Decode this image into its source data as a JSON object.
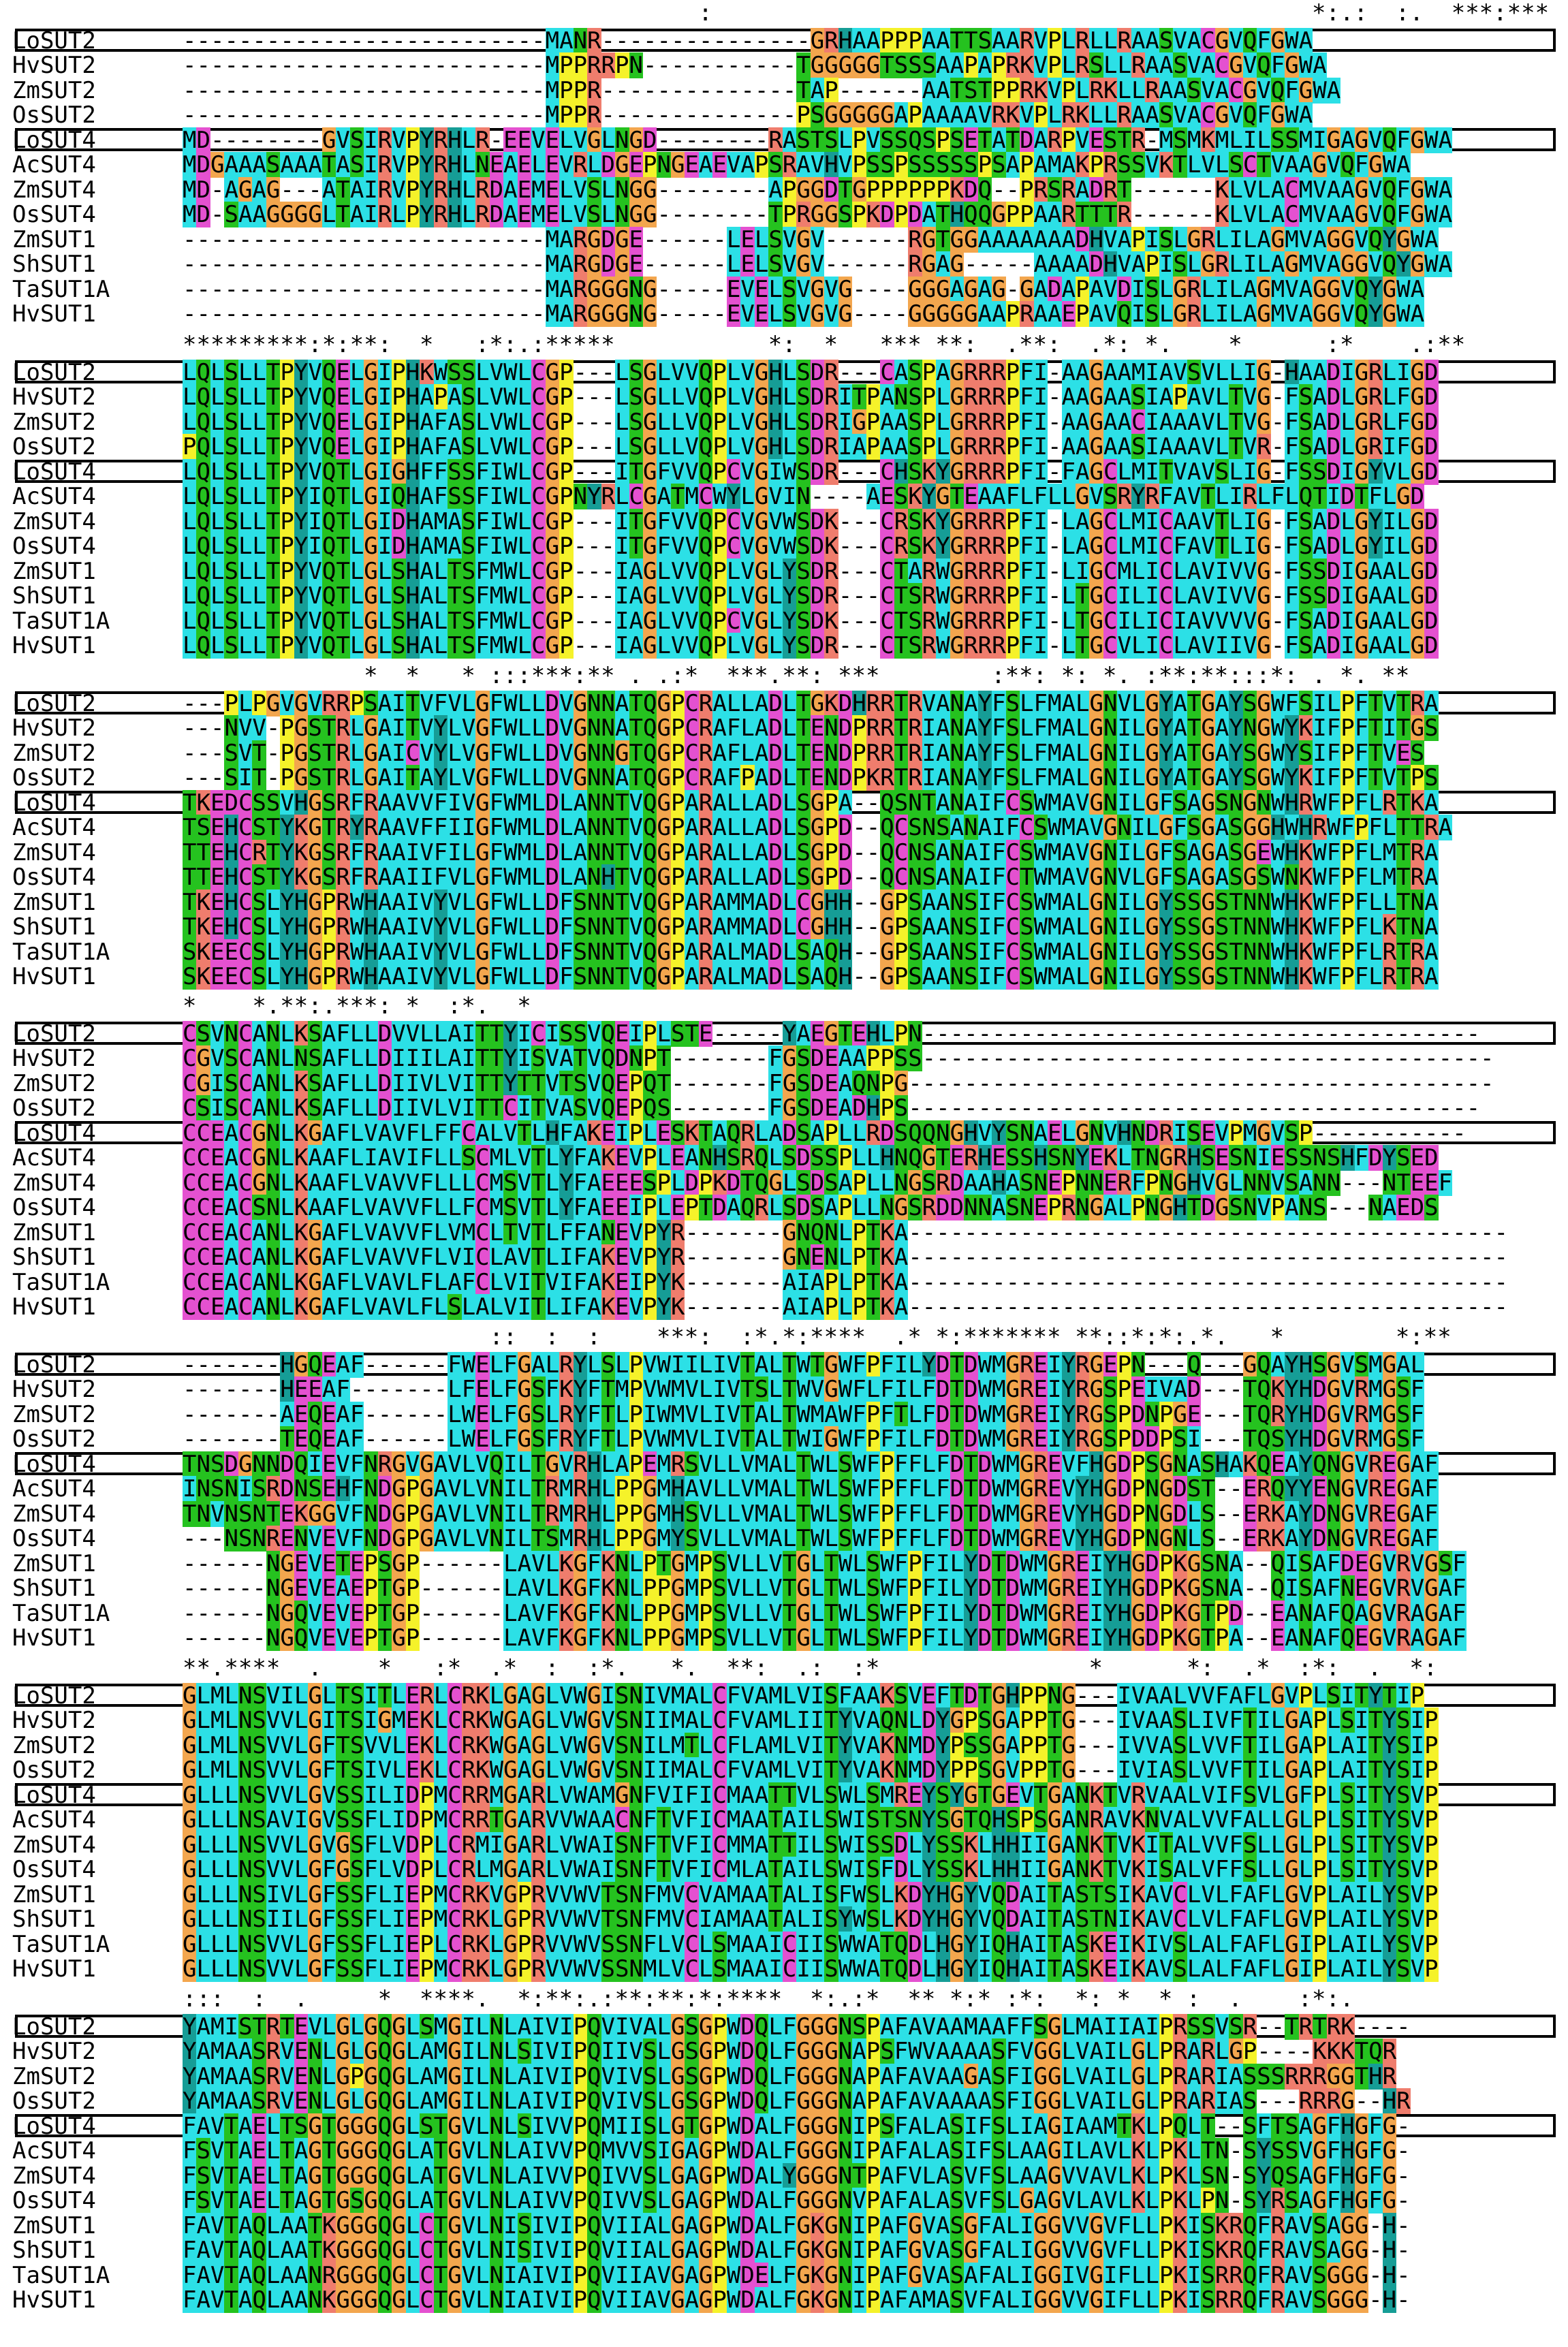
{
  "colors": {
    "cyan": "#2ce0e6",
    "orange": "#f3a64e",
    "yellow": "#f5f22a",
    "magenta": "#e451d0",
    "green": "#25c21f",
    "teal": "#169d96",
    "salmon": "#ef7d6d",
    "grey": "#b8b8b8"
  },
  "boxed_sequences": [
    "LoSUT2",
    "LoSUT4"
  ],
  "blocks": [
    {
      "conservation": "                                     :                                           *:.:  :.  ***:***",
      "rows": [
        {
          "name": "LoSUT2",
          "seq": "--------------------------MANR---------------GRHAAPPPAATTSAARVPLRLLRAASVACGVQFGWA"
        },
        {
          "name": "HvSUT2",
          "seq": "--------------------------MPPRRPN-----------TGGGGGTSSSAAPAPRKVPLRSLLRAASVACGVQFGWA"
        },
        {
          "name": "ZmSUT2",
          "seq": "--------------------------MPPR--------------TAP------AATSTPPRKVPLRKLLRAASVACGVQFGWA"
        },
        {
          "name": "OsSUT2",
          "seq": "--------------------------MPPR--------------PSGGGGGAPAAAAVRKVPLRKLLRAASVACGVQFGWA"
        },
        {
          "name": "LoSUT4",
          "seq": "MD--------GVSIRVPYRHLR-EEVELVGLNGD--------RASTSLPVSSQSPSETATDARPVESTR-MSMKMLILSSMIGAGVQFGWA"
        },
        {
          "name": "AcSUT4",
          "seq": "MDGAAASAAATASIRVPYRHLNEAELEVRLDGEPNGEAEVAPSRAVHVPSSPSSSSSPSAPAMAKPRSSVKTLVLSCTVAAGVQFGWA"
        },
        {
          "name": "ZmSUT4",
          "seq": "MD-AGAG---ATAIRVPYRHLRDAEMELVSLNGG--------APGGDTGPPPPPPKDQ--PRSRADRT------KLVLACMVAAGVQFGWA"
        },
        {
          "name": "OsSUT4",
          "seq": "MD-SAAGGGGLTAIRLPYRHLRDAEMELVSLNGG--------TPRGGSPKDPDATHQQGPPAARTTTR------KLVLACMVAAGVQFGWA"
        },
        {
          "name": "ZmSUT1",
          "seq": "--------------------------MARGDGE------LELSVGV------RGTGGAAAAAAADHVAPISLGRLILAGMVAGGVQYGWA"
        },
        {
          "name": "ShSUT1",
          "seq": "--------------------------MARGDGE------LELSVGV------RGAG-----AAAADHVAPISLGRLILAGMVAGGVQYGWA"
        },
        {
          "name": "TaSUT1A",
          "seq": "--------------------------MARGGGNG-----EVELSVGVG----GGGAGAG-GADAPAVDISLGRLILAGMVAGGVQYGWA"
        },
        {
          "name": "HvSUT1",
          "seq": "--------------------------MARGGGNG-----EVELSVGVG----GGGGGAAPRAAEPAVQISLGRLILAGMVAGGVQYGWA"
        }
      ]
    },
    {
      "conservation": "*********:*:**:  *   :*:.:*****           *:  *   *** **:  .**:  .*: *.    *      :*    .:**",
      "rows": [
        {
          "name": "LoSUT2",
          "seq": "LQLSLLTPYVQELGIPHKWSSLVWLCGP---LSGLVVQPLVGHLSDR---CASPAGRRRPFI-AAGAAMIAVSVLLIG-HAADIGRLIGD"
        },
        {
          "name": "HvSUT2",
          "seq": "LQLSLLTPYVQELGIPHAPASLVWLCGP---LSGLLVQPLVGHLSDRITPANSPLGRRRPFI-AAGAASIAPAVLTVG-FSADLGRLFGD"
        },
        {
          "name": "ZmSUT2",
          "seq": "LQLSLLTPYVQELGIPHAFASLVWLCGP---LSGLLVQPLVGHLSDRIGPAASPLGRRRPFI-AAGAACIAAAVLTVG-FSADLGRLFGD"
        },
        {
          "name": "OsSUT2",
          "seq": "PQLSLLTPYVQELGIPHAFASLVWLCGP---LSGLLVQPLVGHLSDRIAPAASPLGRRRPFI-AAGAASIAAAVLTVR-FSADLGRIFGD"
        },
        {
          "name": "LoSUT4",
          "seq": "LQLSLLTPYVQTLGIGHFFSSFIWLCGP---ITGFVVQPCVGIWSDR---CHSKYGRRRPFI-FAGCLMITVAVSLIG-FSSDIGYVLGD"
        },
        {
          "name": "AcSUT4",
          "seq": "LQLSLLTPYIQTLGIQHAFSSFIWLCGPNYRLCGATMCWYLGVIN----AESKYGTEAAFLFLLGVSRYRFAVTLIRLFLQTIDTFLGD"
        },
        {
          "name": "ZmSUT4",
          "seq": "LQLSLLTPYIQTLGIDHAMASFIWLCGP---ITGFVVQPCVGVWSDK---CRSKYGRRRPFI-LAGCLMICAAVTLIG-FSADLGYILGD"
        },
        {
          "name": "OsSUT4",
          "seq": "LQLSLLTPYIQTLGIDHAMASFIWLCGP---ITGFVVQPCVGVWSDK---CRSKYGRRRPFI-LAGCLMICFAVTLIG-FSADLGYILGD"
        },
        {
          "name": "ZmSUT1",
          "seq": "LQLSLLTPYVQTLGLSHALTSFMWLCGP---IAGLVVQPLVGLYSDR---CTARWGRRRPFI-LIGCMLICLAVIVVG-FSSDIGAALGD"
        },
        {
          "name": "ShSUT1",
          "seq": "LQLSLLTPYVQTLGLSHALTSFMWLCGP---IAGLVVQPLVGLYSDR---CTSRWGRRRPFI-LTGCILICLAVIVVG-FSSDIGAALGD"
        },
        {
          "name": "TaSUT1A",
          "seq": "LQLSLLTPYVQTLGLSHALTSFMWLCGP---IAGLVVQPCVGLYSDK---CTSRWGRRRPFI-LTGCILICIAVVVVG-FSADIGAALGD"
        },
        {
          "name": "HvSUT1",
          "seq": "LQLSLLTPYVQTLGLSHALTSFMWLCGP---IAGLVVQPLVGLYSDR---CTSRWGRRRPFI-LTGCVLICLAVIIVG-FSADIGAALGD"
        }
      ]
    },
    {
      "conservation": "             *  *   * :::***:** . .:*  ***.**: ***        :**: *: *. :**:**:::*: . *. ** ",
      "rows": [
        {
          "name": "LoSUT2",
          "seq": "---PLPGVGVRRPSAITVFVLGFWLLDVGNNATQGPCRALLADLTGKDHRRTRVANAYFSLFMALGNVLGYATGAYSGWFSILPFTVTRA"
        },
        {
          "name": "HvSUT2",
          "seq": "---NVV-PGSTRLGAITVYLVGFWLLDVGNNATQGPCRAFLADLTENDPRRTRIANAYFSLFMALGNILGYATGAYNGWYKIFPFTITGS"
        },
        {
          "name": "ZmSUT2",
          "seq": "---SVT-PGSTRLGAICVYLVGFWLLDVGNNGTQGPCRAFLADLTENDPRRTRIANAYFSLFMALGNILGYATGAYSGWYSIFPFTVES"
        },
        {
          "name": "OsSUT2",
          "seq": "---SIT-PGSTRLGAITAYLVGFWLLDVGNNATQGPCRAFPADLTENDPKRTRIANAYFSLFMALGNILGYATGAYSGWYKIFPFTVTPS"
        },
        {
          "name": "LoSUT4",
          "seq": "TKEDCSSVHGSRFRAAVVFIVGFWMLDLANNTVQGPARALLADLSGPA--QSNTANAIFCSWMAVGNILGFSAGSNGNWHRWFPFLRTKA"
        },
        {
          "name": "AcSUT4",
          "seq": "TSEHCSTYKGTRYRAAVFFIIGFWMLDLANNTVQGPARALLADLSGPD--QCSNSANAIFCSWMAVGNILGFSGASGGHWHRWFPFLTTRA"
        },
        {
          "name": "ZmSUT4",
          "seq": "TTEHCRTYKGSRFRAAIVFILGFWMLDLANNTVQGPARALLADLSGPD--QCNSANAIFCSWMAVGNILGFSAGASGEWHKWFPFLMTRA"
        },
        {
          "name": "OsSUT4",
          "seq": "TTEHCSTYKGSRFRAAIIFVLGFWMLDLANHTVQGPARALLADLSGPD--QCNSANAIFCTWMAVGNVLGFSAGASGSWNKWFPFLMTRA"
        },
        {
          "name": "ZmSUT1",
          "seq": "TKEHCSLYHGPRWHAAIVYVLGFWLLDFSNNTVQGPARAMMADLCGHH--GPSAANSIFCSWMALGNILGYSSGSTNNWHKWFPFLLTNA"
        },
        {
          "name": "ShSUT1",
          "seq": "TKEHCSLYHGPRWHAAIVYVLGFWLLDFSNNTVQGPARAMMADLCGHH--GPSAANSIFCSWMALGNILGYSSGSTNNWHKWFPFLKTNA"
        },
        {
          "name": "TaSUT1A",
          "seq": "SKEECSLYHGPRWHAAIVYVLGFWLLDFSNNTVQGPARALMADLSAQH--GPSAANSIFCSWMALGNILGYSSGSTNNWHKWFPFLRTRA"
        },
        {
          "name": "HvSUT1",
          "seq": "SKEECSLYHGPRWHAAIVYVLGFWLLDFSNNTVQGPARALMADLSAQH--GPSAANSIFCSWMALGNILGYSSGSTNNWHKWFPFLRTRA"
        }
      ]
    },
    {
      "conservation": "*    *.**:.***: *  :*.  *",
      "rows": [
        {
          "name": "LoSUT2",
          "seq": "CSVNCANLKSAFLLDVVLLAITTYICISSVQEIPLSTE-----YAEGTEHLPN----------------------------------------"
        },
        {
          "name": "HvSUT2",
          "seq": "CGVSCANLNSAFLLDIIILAITTYISVATVQDNPT-------FGSDEAAPPSS-----------------------------------------"
        },
        {
          "name": "ZmSUT2",
          "seq": "CGISCANLKSAFLLDIIVLVITTYTTVTSVQEPQT-------FGSDEAQNPG------------------------------------------"
        },
        {
          "name": "OsSUT2",
          "seq": "CSISCANLKSAFLLDIIVLVITTCITVASVQEPQS-------FGSDEADHPS-----------------------------------------"
        },
        {
          "name": "LoSUT4",
          "seq": "CCEACGNLKGAFLVAVFLFFCALVTLHFAKEIPLESKTAQRLADSAPLLRDSQQNGHVYSNAELGNVHNDRISEVPMGVSP-----------"
        },
        {
          "name": "AcSUT4",
          "seq": "CCEACGNLKAAFLIAVIFLLSCMLVTLYFAKEVPLEANHSRQLSDSSPLLHNQGTERHESSHSNYEKLTNGRHSESNIESSNSHFDYSED"
        },
        {
          "name": "ZmSUT4",
          "seq": "CCEACGNLKAAFLVAVVFLLLCMSVTLYFAEEESPLDPKDTQGLSDSAPLLNGSRDAAHASNEPNNERFPNGHVGLNNVSANN---NTEEF"
        },
        {
          "name": "OsSUT4",
          "seq": "CCEACSNLKAAFLVAVVFLLFCMSVTLYFAEEIPLEPTDAQRLSDSAPLLNGSRDDNNASNEPRNGALPNGHTDGSNVPANS---NAEDS"
        },
        {
          "name": "ZmSUT1",
          "seq": "CCEACANLKGAFLVAVVFLVMCLTVTLFFANEVPYR-------GNQNLPTKA-------------------------------------------"
        },
        {
          "name": "ShSUT1",
          "seq": "CCEACANLKGAFLVAVVFLVICLAVTLIFAKEVPYR-------GNENLPTKA-------------------------------------------"
        },
        {
          "name": "TaSUT1A",
          "seq": "CCEACANLKGAFLVAVLFLAFCLVITVIFAKEIPYK-------AIAPLPTKA-------------------------------------------"
        },
        {
          "name": "HvSUT1",
          "seq": "CCEACANLKGAFLVAVLFLSLALVITLIFAKEVPYK-------AIAPLPTKA-------------------------------------------"
        }
      ]
    },
    {
      "conservation": "                      ::  :  :    ***:  :*.*:****  .* *:******* **::*:*:.*.   *        *:**",
      "rows": [
        {
          "name": "LoSUT2",
          "seq": "-------HGQEAF------FWELFGALRYLSLPVWIILIVTALTWTGWFPFILYDTDWMGREIYRGEPN---Q---GQAYHSGVSMGAL"
        },
        {
          "name": "HvSUT2",
          "seq": "-------HEEAF-------LFELFGSFKYFTMPVWMVLIVTSLTWVGWFLFILFDTDWMGREIYRGSPEIVAD---TQKYHDGVRMGSF"
        },
        {
          "name": "ZmSUT2",
          "seq": "-------AEQEAF------LWELFGSLRYFTLPIWMVLIVTALTWMAWFPFTLFDTDWMGREIYRGSPDNPGE---TQRYHDGVRMGSF"
        },
        {
          "name": "OsSUT2",
          "seq": "-------TEQEAF------LWELFGSFRYFTLPVWMVLIVTALTWIGWFPFILFDTDWMGREIYRGSPDDPSI---TQSYHDGVRMGSF"
        },
        {
          "name": "LoSUT4",
          "seq": "TNSDGNNDQIEVFNRGVGAVLVQILTGVRHLAPEMRSVLLVMALTWLSWFPFFLFDTDWMGREVFHGDPSGNASHAKQEAYQNGVREGAF"
        },
        {
          "name": "AcSUT4",
          "seq": "INSNISRDNSEHFNDGPGAVLVNILTRMRHLPPGMHAVLLVMALTWLSWFPFFLFDTDWMGREVYHGDPNGDST--ERQYYENGVREGAF"
        },
        {
          "name": "ZmSUT4",
          "seq": "TNVNSNTEKGGVFNDGPGAVLVNILTRMRHLPPGMHSVLLVMALTWLSWFPFFLFDTDWMGREVYHGDPNGDLS--ERKAYDNGVREGAF"
        },
        {
          "name": "OsSUT4",
          "seq": "---NSNRENVEVFNDGPGAVLVNILTSMRHLPPGMYSVLLVMALTWLSWFPFFLFDTDWMGREVYHGDPNGNLS--ERKAYDNGVREGAF"
        },
        {
          "name": "ZmSUT1",
          "seq": "------NGEVETEPSGP------LAVLKGFKNLPTGMPSVLLVTGLTWLSWFPFILYDTDWMGREIYHGDPKGSNA--QISAFDEGVRVGSF"
        },
        {
          "name": "ShSUT1",
          "seq": "------NGEVEAEPTGP------LAVLKGFKNLPPGMPSVLLVTGLTWLSWFPFILYDTDWMGREIYHGDPKGSNA--QISAFNEGVRVGAF"
        },
        {
          "name": "TaSUT1A",
          "seq": "------NGQVEVEPTGP------LAVFKGFKNLPPGMPSVLLVTGLTWLSWFPFILYDTDWMGREIYHGDPKGTPD--EANAFQAGVRAGAF"
        },
        {
          "name": "HvSUT1",
          "seq": "------NGQVEVEPTGP------LAVFKGFKNLPPGMPSVLLVTGLTWLSWFPFILYDTDWMGREIYHGDPKGTPA--EANAFQEGVRAGAF"
        }
      ]
    },
    {
      "conservation": "**.****  .    *   :*  .*  :  :*.   *.  **:  .:  :*               *      *:  .*  :*:  .  *:",
      "rows": [
        {
          "name": "LoSUT2",
          "seq": "GLMLNSVILGLTSITLERLCRKLGAGLVWGISNIVMALCFVAMLVISFAAKSVEFTDTGHPPNG---IVAALVVFAFLGVPLSITYTIP"
        },
        {
          "name": "HvSUT2",
          "seq": "GLMLNSVVLGITSIGMEKLCRKWGAGLVWGVSNIIMALCFVAMLIITYVAQNLDYGPSGAPPTG---IVAASLIVFTILGAPLSITYSIP"
        },
        {
          "name": "ZmSUT2",
          "seq": "GLMLNSVVLGFTSVVLEKLCRKWGAGLVWGVSNILMTLCFLAMLVITYVAKNMDYPSSGAPPTG---IVVASLVVFTILGAPLAITYSIP"
        },
        {
          "name": "OsSUT2",
          "seq": "GLMLNSVVLGFTSIVLEKLCRKWGAGLVWGVSNIIMALCFVAMLVITYVAKNMDYPPSGVPPTG---IVIASLVVFTILGAPLAITYSIP"
        },
        {
          "name": "LoSUT4",
          "seq": "GLLLNSVVLGVSSILIDPMCRRMGARLVWAMGNFVIFICMAATTVLSWLSMREYSYGTGEVTGANKTVRVAALVIFSVLGFPLSITYSVP"
        },
        {
          "name": "AcSUT4",
          "seq": "GLLLNSAVIGVSSFLIDPMCRRTGARVVWAACNFTVFICMAATAILSWISTSNYSGTQHSPSGANRAVKNVALVVFALLGLPLSITYSVP"
        },
        {
          "name": "ZmSUT4",
          "seq": "GLLLNSVVLGVGSFLVDPLCRMIGARLVWAISNFTVFICMMATTILSWISSDLYSSKLHHIIGANKTVKITALVVFSLLGLPLSITYSVP"
        },
        {
          "name": "OsSUT4",
          "seq": "GLLLNSVVLGFGSFLVDPLCRLMGARLVWAISNFTVFICMLATAILSWISFDLYSSKLHHIIGANKTVKISALVFFSLLGLPLSITYSVP"
        },
        {
          "name": "ZmSUT1",
          "seq": "GLLLNSIVLGFSSFLIEPMCRKVGPRVVWVTSNFMVCVAMAATALISFWSLKDYHGYVQDAITASTSIKAVCLVLFAFLGVPLAILYSVP"
        },
        {
          "name": "ShSUT1",
          "seq": "GLLLNSIILGFSSFLIEPMCRKLGPRVVWVTSNFMVCIAMAATALISYWSLKDYHGYVQDAITASTNIKAVCLVLFAFLGVPLAILYSVP"
        },
        {
          "name": "TaSUT1A",
          "seq": "GLLLNSVVLGFSSFLIEPLCRKLGPRVVWVSSNFLVCLSMAAICIISWWATQDLHGYIQHAITASKEIKIVSLALFAFLGIPLAILYSVP"
        },
        {
          "name": "HvSUT1",
          "seq": "GLLLNSVVLGFSSFLIEPMCRKLGPRVVWVSSNMLVCLSMAAICIISWWATQDLHGYIQHAITASKEIKAVSLALFAFLGIPLAILYSVP"
        }
      ]
    },
    {
      "conservation": ":::  :  .     *  ****.  *:**:.:**:**:*:****  *:.:*  ** *:* :*:  *: *  * :  .    :*:.",
      "rows": [
        {
          "name": "LoSUT2",
          "seq": "YAMISTRTEVLGLGQGLSMGILNLAIVIPQVIVALGSGPWDQLFGGGNSPAFAVAAMAAFFSGLMAIIAIPRSSVSR--TRTRK----"
        },
        {
          "name": "HvSUT2",
          "seq": "YAMAASRVENLGLGQGLAMGILNLSIVIPQIIVSLGSGPWDQLFGGGNAPSFWVAAAASFVGGLVAILGLPRARLGP----KKKTQR"
        },
        {
          "name": "ZmSUT2",
          "seq": "YAMAASRVENLGPGQGLAMGILNLAIVIPQVIVSLGSGPWDQLFGGGNAPAFAVAAGASFIGGLVAILGLPRARIASSSRRRGGTHR"
        },
        {
          "name": "OsSUT2",
          "seq": "YAMAASRVENLGLGQGLAMGILNLAIVIPQVIVSLGSGPWDQLFGGGNAPAFAVAAAASFIGGLVAILGLPRARIAS---RRRG--HR"
        },
        {
          "name": "LoSUT4",
          "seq": "FAVTAELTSGTGGGQGLSTGVLNLSIVVPQMIISLGTGPWDALFGGGNIPSFALASIFSLIAGIAAMTKLPQLT--SFTSAGFHGFG-"
        },
        {
          "name": "AcSUT4",
          "seq": "FSVTAELTAGTGGGQGLATGVLNLAIVVPQMVVSIGAGPWDALFGGGNIPAFALASIFSLAAGILAVLKLPKLTN-SYSSVGFHGFG-"
        },
        {
          "name": "ZmSUT4",
          "seq": "FSVTAELTAGTGGGQGLATGVLNLAIVVPQIVVSLGAGPWDALYGGGNTPAFVLASVFSLAAGVVAVLKLPKLSN-SYQSAGFHGFG-"
        },
        {
          "name": "OsSUT4",
          "seq": "FSVTAELTAGTGSGQGLATGVLNLAIVVPQIVVSLGAGPWDALFGGGNVPAFALASVFSLGAGVLAVLKLPKLPN-SYRSAGFHGFG-"
        },
        {
          "name": "ZmSUT1",
          "seq": "FAVTAQLAATKGGGQGLCTGVLNISIVIPQVIIALGAGPWDALFGKGNIPAFGVASGFALIGGVVGVFLLPKISKRQFRAVSAGG-H-"
        },
        {
          "name": "ShSUT1",
          "seq": "FAVTAQLAATKGGGQGLCTGVLNISIVIPQVIIALGAGPWDALFGKGNIPAFGVASGFALIGGVVGVFLLPKISKRQFRAVSAGG-H-"
        },
        {
          "name": "TaSUT1A",
          "seq": "FAVTAQLAANRGGGQGLCTGVLNIAIVIPQVIIAVGAGPWDELFGKGNIPAFGVASAFALIGGIVGIFLLPKISRRQFRAVSGGG-H-"
        },
        {
          "name": "HvSUT1",
          "seq": "FAVTAQLAANKGGGQGLCTGVLNIAIVIPQVIIAVGAGPWDALFGKGNIPAFAMASVFALIGGVVGIFLLPKISRRQFRAVSGGG-H-"
        }
      ]
    }
  ]
}
